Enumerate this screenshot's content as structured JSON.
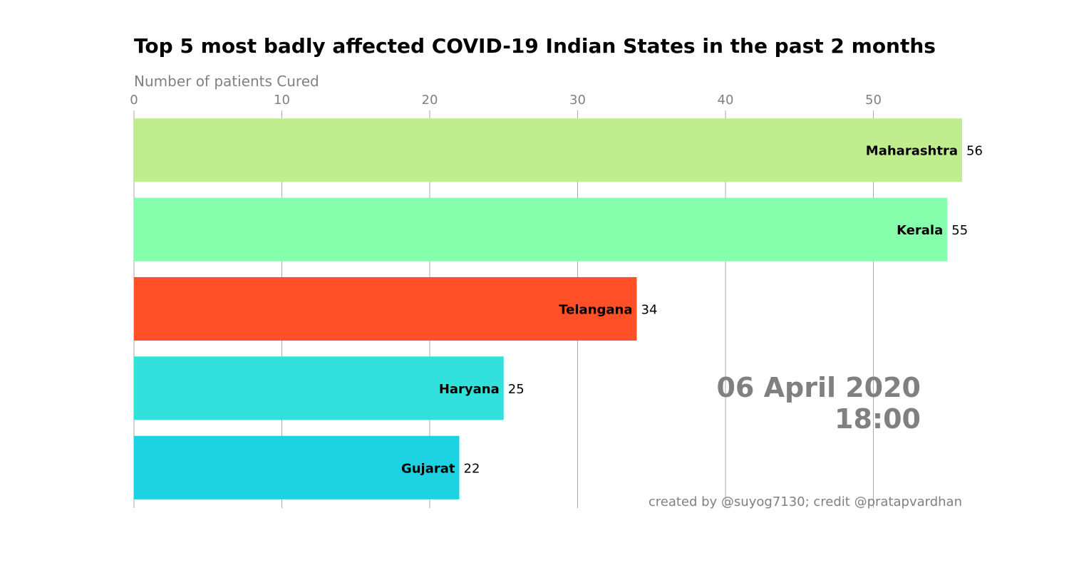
{
  "chart_data": {
    "type": "bar",
    "orientation": "horizontal",
    "title": "Top 5 most badly affected COVID-19 Indian States in the past 2 months",
    "xlabel": "Number of patients Cured",
    "categories": [
      "Maharashtra",
      "Kerala",
      "Telangana",
      "Haryana",
      "Gujarat"
    ],
    "values": [
      56,
      55,
      34,
      25,
      22
    ],
    "colors": [
      "#c0ed8e",
      "#86ffad",
      "#ff5028",
      "#33e1dc",
      "#1ed3e1"
    ],
    "xlim": [
      0,
      56
    ],
    "xticks": [
      0,
      10,
      20,
      30,
      40,
      50
    ],
    "grid": "vertical",
    "axis_position": "top",
    "date_label": "06 April 2020",
    "time_label": "18:00",
    "credit": "created by @suyog7130; credit @pratapvardhan"
  }
}
